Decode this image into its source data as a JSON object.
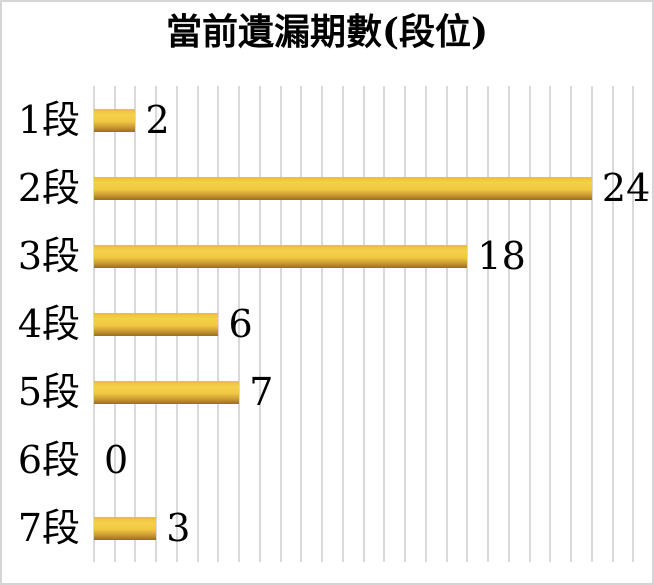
{
  "title": "當前遺漏期數(段位)",
  "chart_data": {
    "type": "bar",
    "orientation": "horizontal",
    "title": "當前遺漏期數(段位)",
    "categories": [
      "1段",
      "2段",
      "3段",
      "4段",
      "5段",
      "6段",
      "7段"
    ],
    "values": [
      2,
      24,
      18,
      6,
      7,
      0,
      3
    ],
    "xlabel": "",
    "ylabel": "",
    "xlim": [
      0,
      26.8
    ],
    "gridline_interval": 1,
    "grid": true,
    "legend": false,
    "data_labels": true
  },
  "colors": {
    "background": "#ffffff",
    "frame_border": "#d5d5d5",
    "gridline": "#d9d9d9",
    "text": "#000000",
    "bar_gradient": [
      "#e9be38",
      "#f6d04b",
      "#f0c840",
      "#c79834",
      "#9a6e1b"
    ]
  }
}
